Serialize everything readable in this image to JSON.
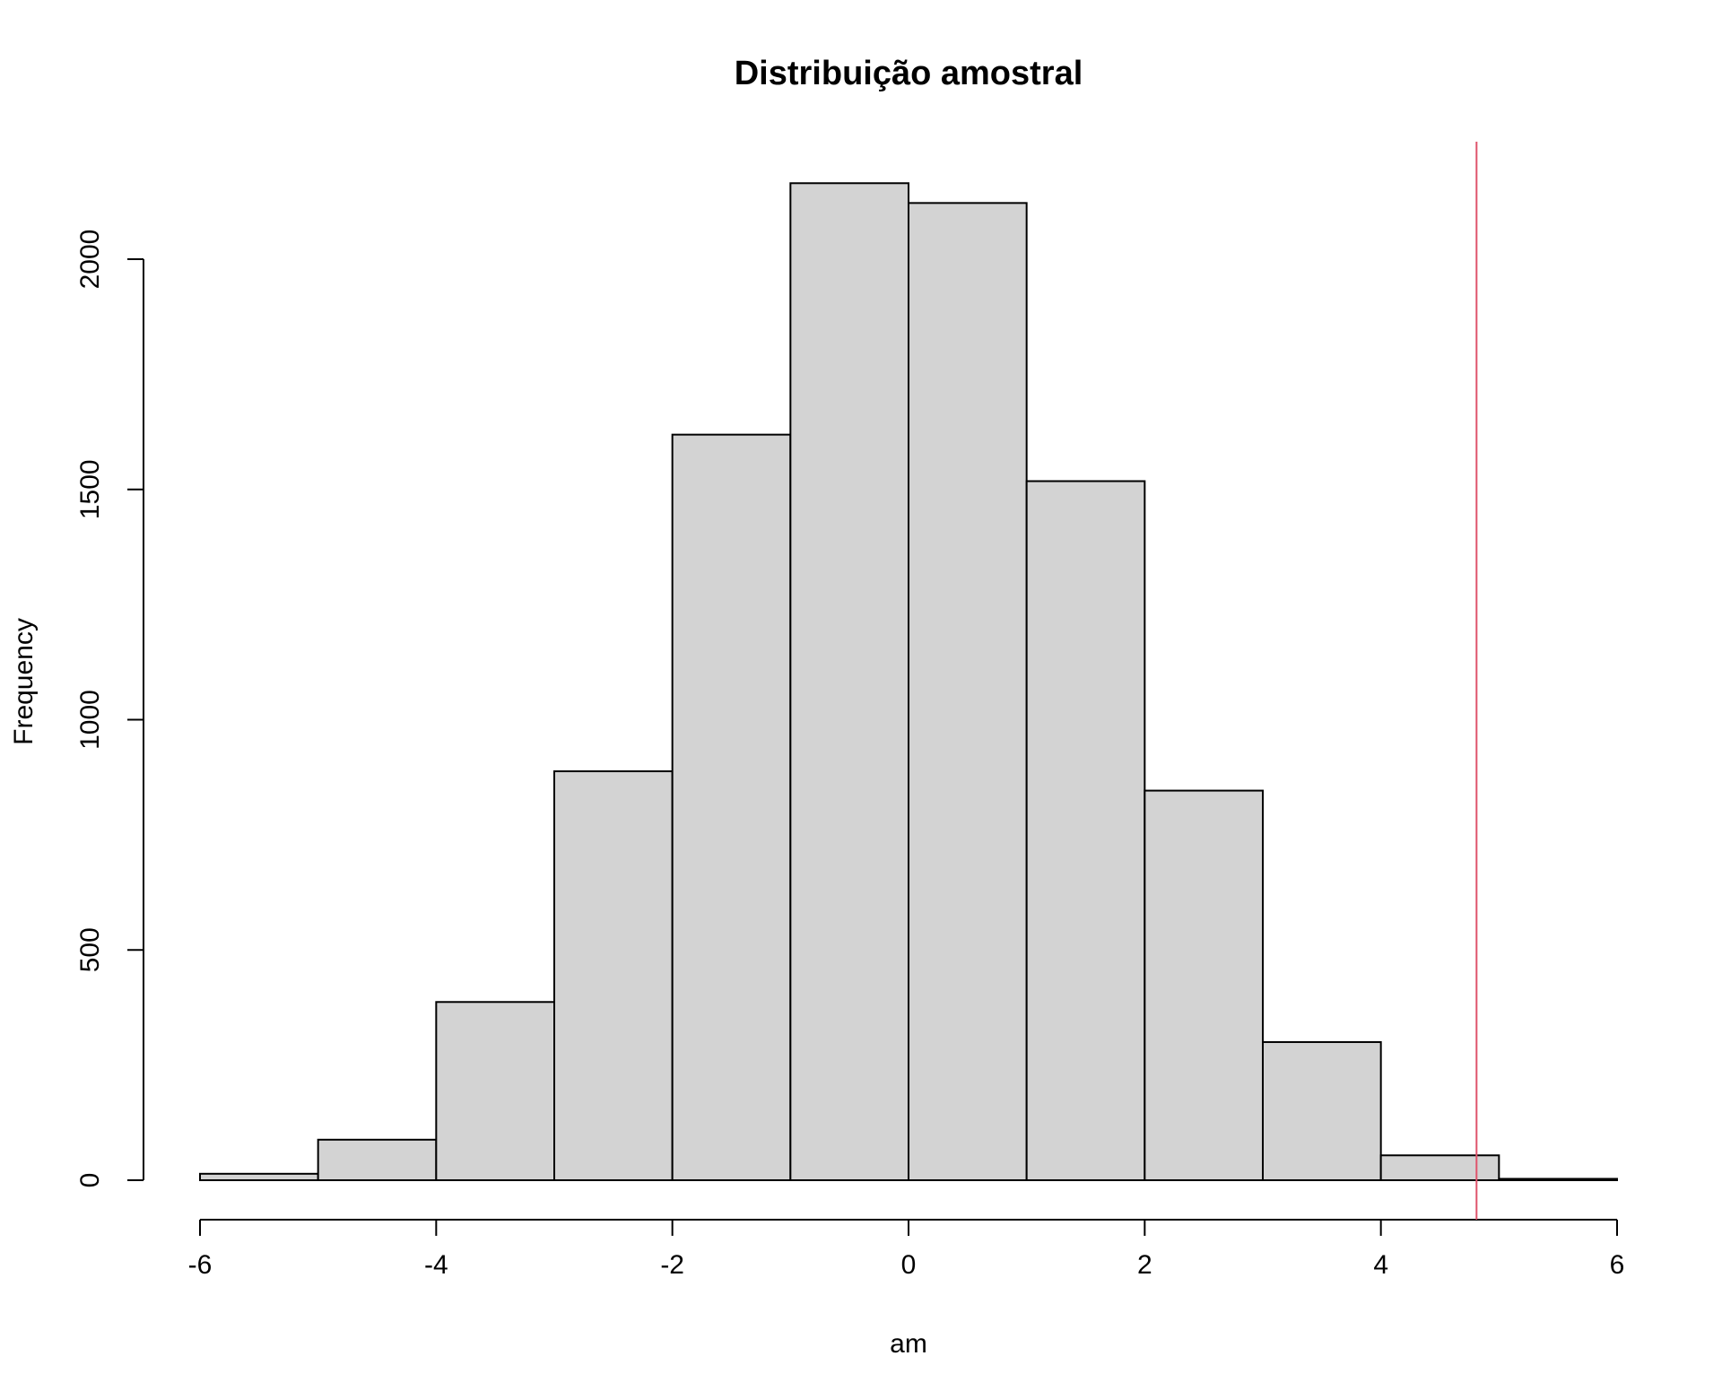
{
  "chart_data": {
    "type": "bar",
    "title": "Distribuição amostral",
    "xlabel": "am",
    "ylabel": "Frequency",
    "xlim": [
      -6,
      6
    ],
    "ylim": [
      0,
      2250
    ],
    "bin_edges": [
      -6,
      -5,
      -4,
      -3,
      -2,
      -1,
      0,
      1,
      2,
      3,
      4,
      5,
      6
    ],
    "values": [
      14,
      88,
      387,
      888,
      1619,
      2165,
      2122,
      1518,
      846,
      300,
      54,
      3
    ],
    "x_ticks": [
      -6,
      -4,
      -2,
      0,
      2,
      4,
      6
    ],
    "x_tick_labels": [
      "-6",
      "-4",
      "-2",
      "0",
      "2",
      "4",
      "6"
    ],
    "y_ticks": [
      0,
      500,
      1000,
      1500,
      2000
    ],
    "y_tick_labels": [
      "0",
      "500",
      "1000",
      "1500",
      "2000"
    ],
    "reference_line": {
      "x": 4.81,
      "color": "#DF536B"
    },
    "bar_fill": "#D3D3D3",
    "bar_stroke": "#000000",
    "grid": false,
    "legend": "none"
  }
}
